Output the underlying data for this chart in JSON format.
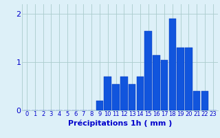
{
  "hours": [
    0,
    1,
    2,
    3,
    4,
    5,
    6,
    7,
    8,
    9,
    10,
    11,
    12,
    13,
    14,
    15,
    16,
    17,
    18,
    19,
    20,
    21,
    22,
    23
  ],
  "values": [
    0,
    0,
    0,
    0,
    0,
    0,
    0,
    0,
    0,
    0.2,
    0.7,
    0.55,
    0.7,
    0.55,
    0.7,
    1.65,
    1.15,
    1.05,
    1.9,
    1.3,
    1.3,
    0.4,
    0.4,
    0
  ],
  "bar_color": "#1155dd",
  "bar_edge_color": "#0033bb",
  "background_color": "#ddf0f8",
  "grid_color": "#aacccc",
  "text_color": "#0000cc",
  "xlabel": "Précipitations 1h ( mm )",
  "ylim": [
    0,
    2.2
  ],
  "yticks": [
    0,
    1,
    2
  ],
  "axis_fontsize": 7,
  "tick_fontsize": 6
}
